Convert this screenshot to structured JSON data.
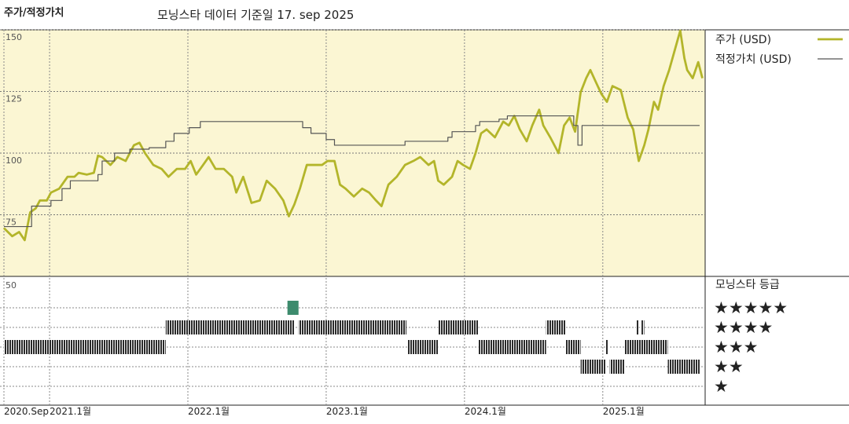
{
  "chart_data": {
    "type": "line",
    "title": "주가/적정가치",
    "subtitle": "모닝스타 데이터 기준일 17. sep 2025",
    "xlim": [
      2020.67,
      2025.74
    ],
    "xticks": [
      {
        "value": 2020.67,
        "label": "2020.Sep"
      },
      {
        "value": 2021,
        "label": "2021.1월"
      },
      {
        "value": 2022,
        "label": "2022.1월"
      },
      {
        "value": 2023,
        "label": "2023.1월"
      },
      {
        "value": 2024,
        "label": "2024.1월"
      },
      {
        "value": 2025,
        "label": "2025.1월"
      }
    ],
    "ylim": [
      50,
      150
    ],
    "yticks": [
      75,
      100,
      125,
      150
    ],
    "grid": true,
    "background": "#fbf6d3",
    "series": [
      {
        "name": "주가 (USD)",
        "color": "#b3b52a",
        "x": [
          2020.67,
          2020.73,
          2020.78,
          2020.82,
          2020.86,
          2020.9,
          2020.93,
          2020.98,
          2021.01,
          2021.07,
          2021.13,
          2021.18,
          2021.21,
          2021.27,
          2021.32,
          2021.35,
          2021.38,
          2021.44,
          2021.49,
          2021.55,
          2021.61,
          2021.65,
          2021.69,
          2021.75,
          2021.81,
          2021.86,
          2021.92,
          2021.98,
          2022.02,
          2022.06,
          2022.11,
          2022.15,
          2022.2,
          2022.26,
          2022.32,
          2022.35,
          2022.4,
          2022.46,
          2022.52,
          2022.57,
          2022.63,
          2022.69,
          2022.73,
          2022.77,
          2022.81,
          2022.86,
          2022.91,
          2022.97,
          2023.01,
          2023.06,
          2023.1,
          2023.14,
          2023.2,
          2023.26,
          2023.31,
          2023.36,
          2023.4,
          2023.45,
          2023.51,
          2023.57,
          2023.63,
          2023.68,
          2023.74,
          2023.78,
          2023.81,
          2023.85,
          2023.91,
          2023.95,
          2023.99,
          2024.04,
          2024.08,
          2024.12,
          2024.16,
          2024.22,
          2024.28,
          2024.32,
          2024.36,
          2024.4,
          2024.45,
          2024.49,
          2024.54,
          2024.57,
          2024.62,
          2024.68,
          2024.72,
          2024.76,
          2024.8,
          2024.84,
          2024.88,
          2024.91,
          2024.95,
          2024.99,
          2025.03,
          2025.07,
          2025.13,
          2025.18,
          2025.22,
          2025.26,
          2025.3,
          2025.33,
          2025.37,
          2025.4,
          2025.44,
          2025.48,
          2025.52,
          2025.56,
          2025.59,
          2025.61,
          2025.65,
          2025.69,
          2025.72
        ],
        "values": [
          69.6,
          66.3,
          68.0,
          64.7,
          76.0,
          77.6,
          80.8,
          80.8,
          84.0,
          85.6,
          90.4,
          90.4,
          92.0,
          91.3,
          92.0,
          99.0,
          98.4,
          95.2,
          98.4,
          96.8,
          103.2,
          104.2,
          100.0,
          95.2,
          93.6,
          90.4,
          93.6,
          93.6,
          96.8,
          91.3,
          95.2,
          98.4,
          93.6,
          93.6,
          90.4,
          84.0,
          90.4,
          79.8,
          80.8,
          88.8,
          85.6,
          80.8,
          74.4,
          79.2,
          85.6,
          95.2,
          95.2,
          95.2,
          96.8,
          96.8,
          87.2,
          85.6,
          82.4,
          85.6,
          84.0,
          80.8,
          78.5,
          87.2,
          90.4,
          95.2,
          96.8,
          98.4,
          95.2,
          96.8,
          88.8,
          87.2,
          90.4,
          96.8,
          95.2,
          93.6,
          100.0,
          108.0,
          109.6,
          106.4,
          112.8,
          111.2,
          115.1,
          109.6,
          104.8,
          111.2,
          117.6,
          111.2,
          106.4,
          100.0,
          111.2,
          114.4,
          108.7,
          124.7,
          130.4,
          133.7,
          128.8,
          124.0,
          120.8,
          127.2,
          125.6,
          114.4,
          109.6,
          96.8,
          103.2,
          109.6,
          120.8,
          117.6,
          127.2,
          133.7,
          141.7,
          149.7,
          138.5,
          133.7,
          130.4,
          136.9,
          130.4
        ]
      },
      {
        "name": "적정가치 (USD)",
        "color": "#555555",
        "x": [
          2020.67,
          2020.87,
          2020.87,
          2021.01,
          2021.01,
          2021.09,
          2021.09,
          2021.15,
          2021.15,
          2021.35,
          2021.35,
          2021.38,
          2021.38,
          2021.47,
          2021.47,
          2021.58,
          2021.58,
          2021.72,
          2021.72,
          2021.84,
          2021.84,
          2021.9,
          2021.9,
          2022.01,
          2022.01,
          2022.09,
          2022.09,
          2022.83,
          2022.83,
          2022.89,
          2022.89,
          2023.0,
          2023.0,
          2023.06,
          2023.06,
          2023.57,
          2023.57,
          2023.88,
          2023.88,
          2023.91,
          2023.91,
          2024.08,
          2024.08,
          2024.11,
          2024.11,
          2024.25,
          2024.25,
          2024.31,
          2024.31,
          2024.79,
          2024.79,
          2024.82,
          2024.82,
          2024.85,
          2024.85,
          2025.7
        ],
        "values": [
          70.2,
          70.2,
          78.5,
          78.5,
          80.8,
          80.8,
          85.6,
          85.6,
          88.8,
          88.8,
          91.3,
          91.3,
          96.8,
          96.8,
          100.0,
          100.0,
          101.6,
          101.6,
          102.2,
          102.2,
          104.8,
          104.8,
          108.0,
          108.0,
          110.3,
          110.3,
          112.8,
          112.8,
          110.3,
          110.3,
          108.0,
          108.0,
          105.5,
          105.5,
          103.2,
          103.2,
          104.8,
          104.8,
          106.4,
          106.4,
          108.7,
          108.7,
          111.2,
          111.2,
          112.8,
          112.8,
          113.8,
          113.8,
          115.1,
          115.1,
          111.2,
          111.2,
          103.2,
          103.2,
          111.2,
          111.2
        ]
      }
    ],
    "rating": {
      "title": "모닝스타 등급",
      "axis_label": "50",
      "color": "#2b2b2b",
      "highlight": {
        "stars": 5,
        "color": "#3d8b6d"
      },
      "levels": [
        {
          "value": 5,
          "label": "★★★★★"
        },
        {
          "value": 4,
          "label": "★★★★"
        },
        {
          "value": 3,
          "label": "★★★"
        },
        {
          "value": 2,
          "label": "★★"
        },
        {
          "value": 1,
          "label": "★"
        }
      ],
      "start": [
        2020.67,
        2021.84,
        2022.72,
        2022.8,
        2023.59,
        2023.81,
        2024.1,
        2024.59,
        2024.73,
        2024.84,
        2025.02,
        2025.05,
        2025.16,
        2025.24,
        2025.28,
        2025.47
      ],
      "end": [
        2021.84,
        2022.77,
        2022.8,
        2023.58,
        2023.81,
        2024.1,
        2024.59,
        2024.73,
        2024.84,
        2025.02,
        2025.04,
        2025.16,
        2025.47,
        2025.26,
        2025.3,
        2025.7
      ],
      "stars": [
        3,
        4,
        5,
        4,
        3,
        4,
        3,
        4,
        3,
        2,
        3,
        2,
        3,
        4,
        4,
        2
      ]
    }
  }
}
